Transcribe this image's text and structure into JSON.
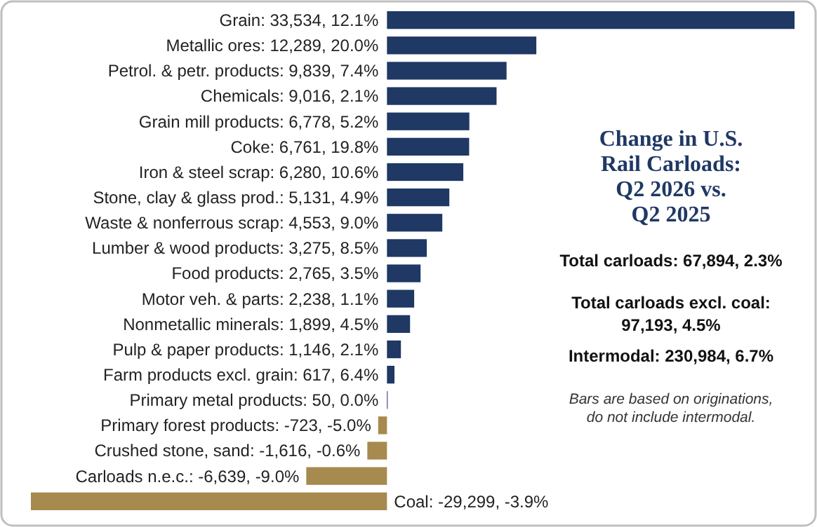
{
  "chart_data": {
    "type": "bar",
    "orientation": "horizontal",
    "title": "Change in U.S. Rail Carloads: Q2 2026 vs. Q2 2025",
    "categories": [
      "Grain",
      "Metallic ores",
      "Petrol. & petr. products",
      "Chemicals",
      "Grain mill products",
      "Coke",
      "Iron & steel scrap",
      "Stone, clay & glass prod.",
      "Waste & nonferrous scrap",
      "Lumber & wood products",
      "Food products",
      "Motor veh. & parts",
      "Nonmetallic minerals",
      "Pulp & paper products",
      "Farm products excl. grain",
      "Primary metal products",
      "Primary forest products",
      "Crushed stone, sand",
      "Carloads n.e.c.",
      "Coal"
    ],
    "values": [
      33534,
      12289,
      9839,
      9016,
      6778,
      6761,
      6280,
      5131,
      4553,
      3275,
      2765,
      2238,
      1899,
      1146,
      617,
      50,
      -723,
      -1616,
      -6639,
      -29299
    ],
    "value_labels": [
      ": 33,534, 12.1%",
      ": 12,289, 20.0%",
      ": 9,839, 7.4%",
      ": 9,016, 2.1%",
      ": 6,778, 5.2%",
      ": 6,761, 19.8%",
      ": 6,280, 10.6%",
      ": 5,131, 4.9%",
      ": 4,553, 9.0%",
      ": 3,275, 8.5%",
      ": 2,765, 3.5%",
      ": 2,238, 1.1%",
      ": 1,899, 4.5%",
      ": 1,146, 2.1%",
      ": 617, 6.4%",
      ": 50, 0.0%",
      ": -723, -5.0%",
      ": -1,616, -0.6%",
      ": -6,639, -9.0%",
      ": -29,299, -3.9%"
    ],
    "colors": [
      "#1f3864",
      "#1f3864",
      "#1f3864",
      "#1f3864",
      "#1f3864",
      "#1f3864",
      "#1f3864",
      "#1f3864",
      "#1f3864",
      "#1f3864",
      "#1f3864",
      "#1f3864",
      "#1f3864",
      "#1f3864",
      "#1f3864",
      "#1f3864",
      "#a68a4e",
      "#a68a4e",
      "#a68a4e",
      "#a68a4e"
    ],
    "annotations": [
      "Total carloads: 67,894, 2.3%",
      "Total carloads excl. coal: 97,193, 4.5%",
      "Intermodal: 230,984, 6.7%",
      "Bars are based on originations, do not include intermodal."
    ]
  }
}
